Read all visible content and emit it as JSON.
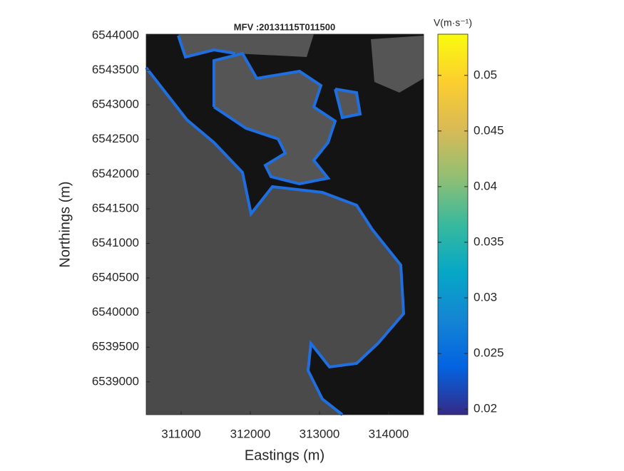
{
  "chart_data": {
    "type": "image",
    "title": "MFV :20131115T011500",
    "x_label": "Eastings (m)",
    "y_label": "Northings (m)",
    "xlim": [
      310495,
      314505
    ],
    "ylim": [
      6538525,
      6544020
    ],
    "xticks": [
      311000,
      312000,
      313000,
      314000
    ],
    "yticks": [
      6539000,
      6539500,
      6540000,
      6540500,
      6541000,
      6541500,
      6542000,
      6542500,
      6543000,
      6543500,
      6544000
    ],
    "colorbar": {
      "label": "V(m·s⁻¹)",
      "lim": [
        0.0195,
        0.0537
      ],
      "ticks": [
        0.02,
        0.025,
        0.03,
        0.035,
        0.04,
        0.045,
        0.05
      ],
      "colormap": [
        "#352a87",
        "#0363e1",
        "#1485d4",
        "#06a7c6",
        "#38b99e",
        "#92bf73",
        "#d9ba56",
        "#fcce2e",
        "#f9fb0e"
      ]
    }
  }
}
